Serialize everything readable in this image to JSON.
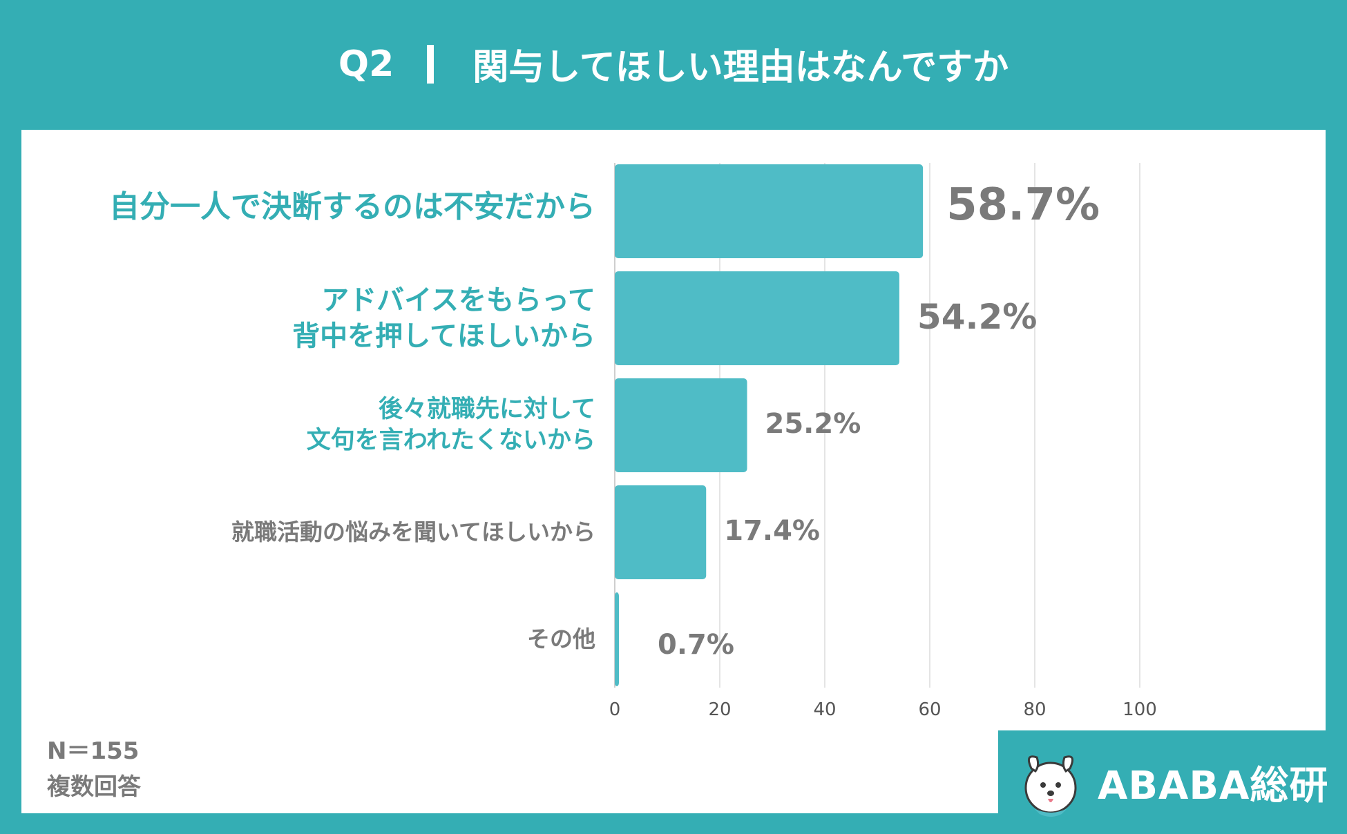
{
  "header": {
    "question": "Q2",
    "title": "関与してほしい理由はなんですか"
  },
  "chart_data": {
    "type": "bar",
    "orientation": "horizontal",
    "categories": [
      "自分一人で決断するのは不安だから",
      "アドバイスをもらって\n背中を押してほしいから",
      "後々就職先に対して\n文句を言われたくないから",
      "就職活動の悩みを聞いてほしいから",
      "その他"
    ],
    "values": [
      58.7,
      54.2,
      25.2,
      17.4,
      0.7
    ],
    "value_labels": [
      "58.7%",
      "54.2%",
      "25.2%",
      "17.4%",
      "0.7%"
    ],
    "xlim": [
      0,
      100
    ],
    "xticks": [
      "0",
      "20",
      "40",
      "60",
      "80",
      "100"
    ],
    "grid": true,
    "colors": {
      "bar": "#4fbcc6",
      "highlight_text": "#34aeb4",
      "muted_text": "#7a7a7a",
      "grid": "#dcdcdc"
    }
  },
  "notes": {
    "sample": "N＝155",
    "type": "複数回答"
  },
  "brand": {
    "name": "ABABA総研",
    "mascot_icon": "dog-mascot-icon"
  }
}
